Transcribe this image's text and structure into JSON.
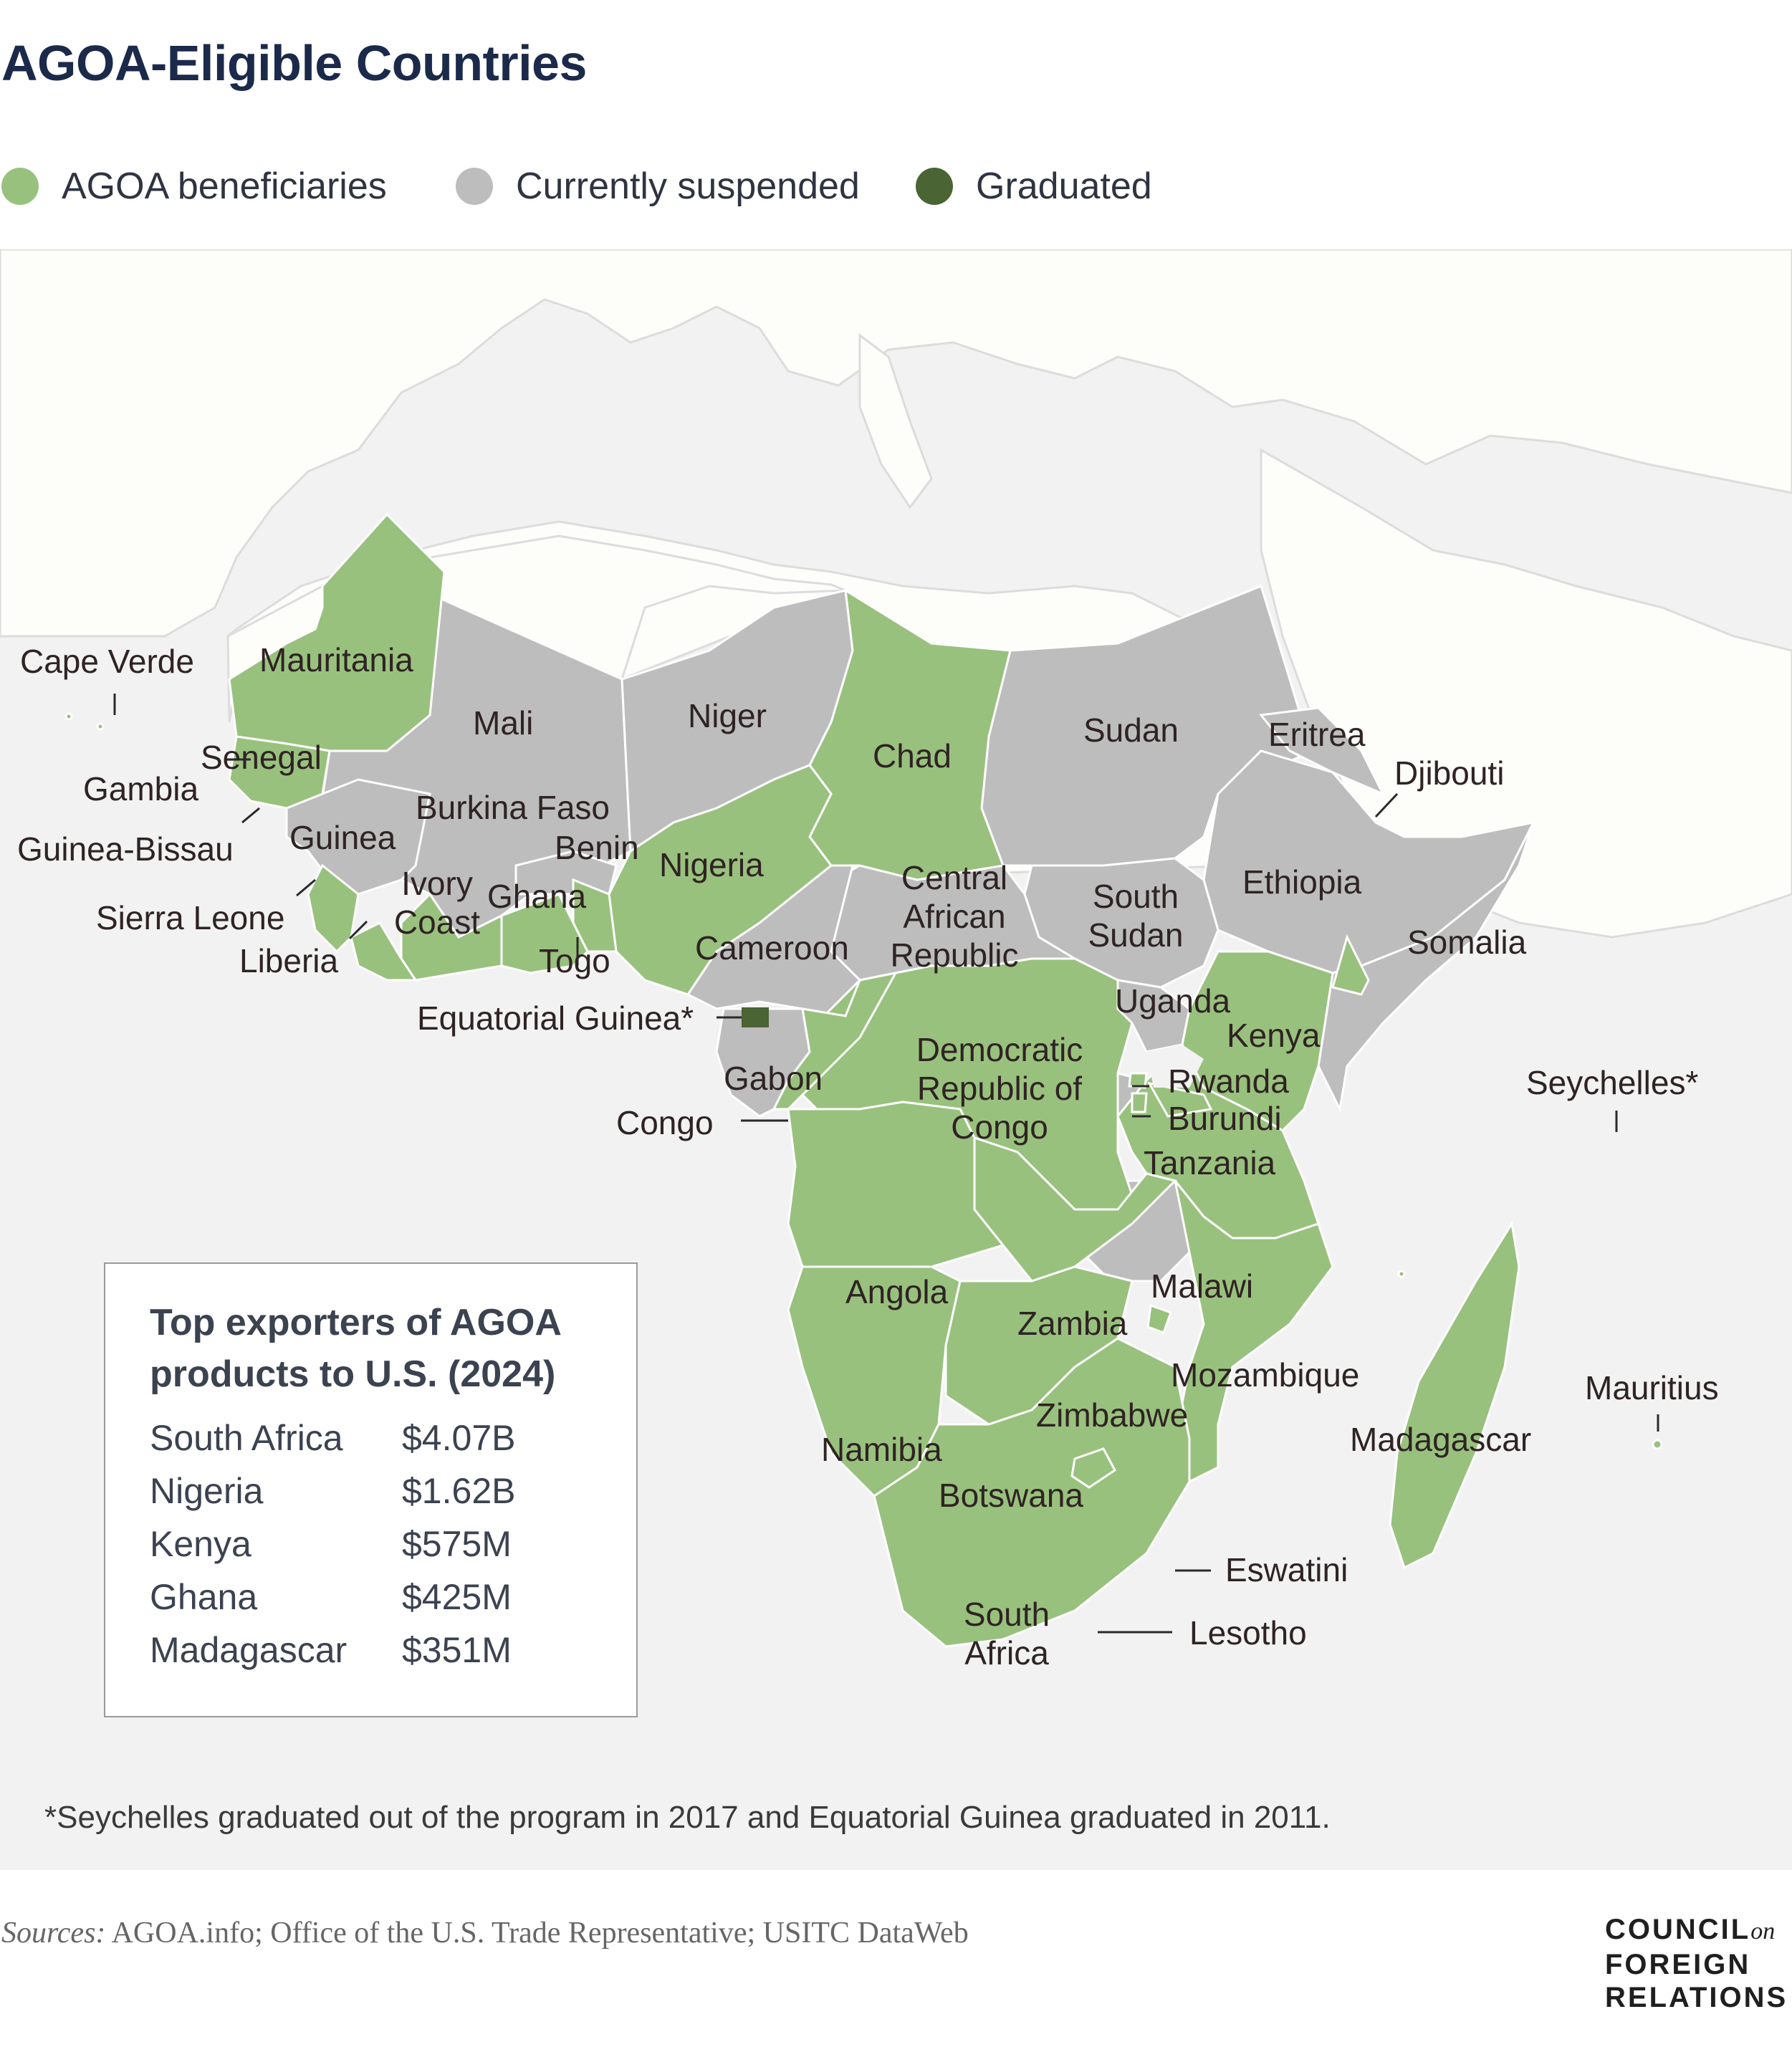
{
  "title": "AGOA-Eligible Countries",
  "legend": [
    {
      "label": "AGOA beneficiaries",
      "color": "#99c17e"
    },
    {
      "label": "Currently suspended",
      "color": "#bdbdbd"
    },
    {
      "label": "Graduated",
      "color": "#4a6433"
    }
  ],
  "colors": {
    "beneficiary": "#99c17e",
    "suspended": "#bdbdbd",
    "graduated": "#4a6433",
    "other_land": "#fdfdfa",
    "water": "#f2f2f2",
    "border": "#ffffff"
  },
  "countries": {
    "cape_verde": "Cape Verde",
    "mauritania": "Mauritania",
    "mali": "Mali",
    "niger": "Niger",
    "chad": "Chad",
    "sudan": "Sudan",
    "eritrea": "Eritrea",
    "djibouti": "Djibouti",
    "senegal": "Senegal",
    "gambia": "Gambia",
    "guinea_bissau": "Guinea-Bissau",
    "guinea": "Guinea",
    "burkina_faso": "Burkina Faso",
    "benin": "Benin",
    "nigeria": "Nigeria",
    "central_african_republic": "Central African Republic",
    "south_sudan": "South Sudan",
    "ethiopia": "Ethiopia",
    "sierra_leone": "Sierra Leone",
    "ivory_coast": "Ivory Coast",
    "ghana": "Ghana",
    "liberia": "Liberia",
    "togo": "Togo",
    "cameroon": "Cameroon",
    "somalia": "Somalia",
    "equatorial_guinea": "Equatorial Guinea*",
    "uganda": "Uganda",
    "kenya": "Kenya",
    "gabon": "Gabon",
    "democratic_republic_of_congo": "Democratic Republic of Congo",
    "rwanda": "Rwanda",
    "burundi": "Burundi",
    "seychelles": "Seychelles*",
    "congo": "Congo",
    "tanzania": "Tanzania",
    "angola": "Angola",
    "malawi": "Malawi",
    "zambia": "Zambia",
    "mozambique": "Mozambique",
    "mauritius": "Mauritius",
    "zimbabwe": "Zimbabwe",
    "madagascar": "Madagascar",
    "namibia": "Namibia",
    "botswana": "Botswana",
    "eswatini": "Eswatini",
    "south_africa": "South Africa",
    "lesotho": "Lesotho"
  },
  "inset": {
    "title": "Top exporters of AGOA products to U.S. (2024)",
    "rows": [
      {
        "country": "South Africa",
        "value": "$4.07B"
      },
      {
        "country": "Nigeria",
        "value": "$1.62B"
      },
      {
        "country": "Kenya",
        "value": "$575M"
      },
      {
        "country": "Ghana",
        "value": "$425M"
      },
      {
        "country": "Madagascar",
        "value": "$351M"
      }
    ]
  },
  "footnote": "*Seychelles graduated out of the program in 2017 and Equatorial Guinea graduated in 2011.",
  "sources": {
    "label": "Sources:",
    "text": "AGOA.info; Office of the U.S. Trade Representative; USITC DataWeb"
  },
  "logo": {
    "line1": "COUNCIL",
    "on": "on",
    "line2": "FOREIGN",
    "line3": "RELATIONS"
  }
}
